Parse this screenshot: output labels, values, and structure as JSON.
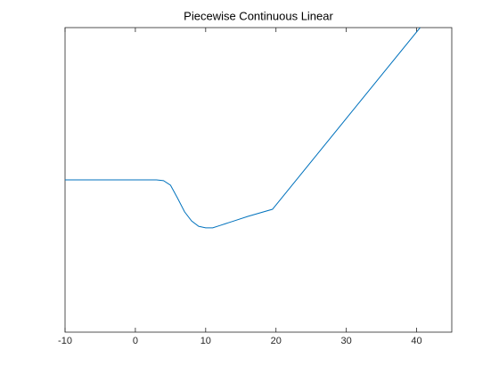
{
  "chart_data": {
    "type": "line",
    "title": "Piecewise Continuous Linear",
    "x": [
      -10,
      3,
      4,
      5,
      6,
      7,
      8,
      9,
      10,
      11,
      12,
      14,
      16,
      19.5,
      40.5
    ],
    "series": [
      {
        "color": "#0072bd",
        "values": [
          0,
          0,
          -0.05,
          -0.35,
          -1.2,
          -2.1,
          -2.7,
          -3.05,
          -3.15,
          -3.15,
          -3.0,
          -2.7,
          -2.4,
          -1.93,
          10
        ]
      }
    ],
    "xlim": [
      -10,
      45
    ],
    "xticks": [
      -10,
      0,
      10,
      20,
      30,
      40
    ],
    "ylim": [
      -10,
      10
    ],
    "yticks": []
  }
}
